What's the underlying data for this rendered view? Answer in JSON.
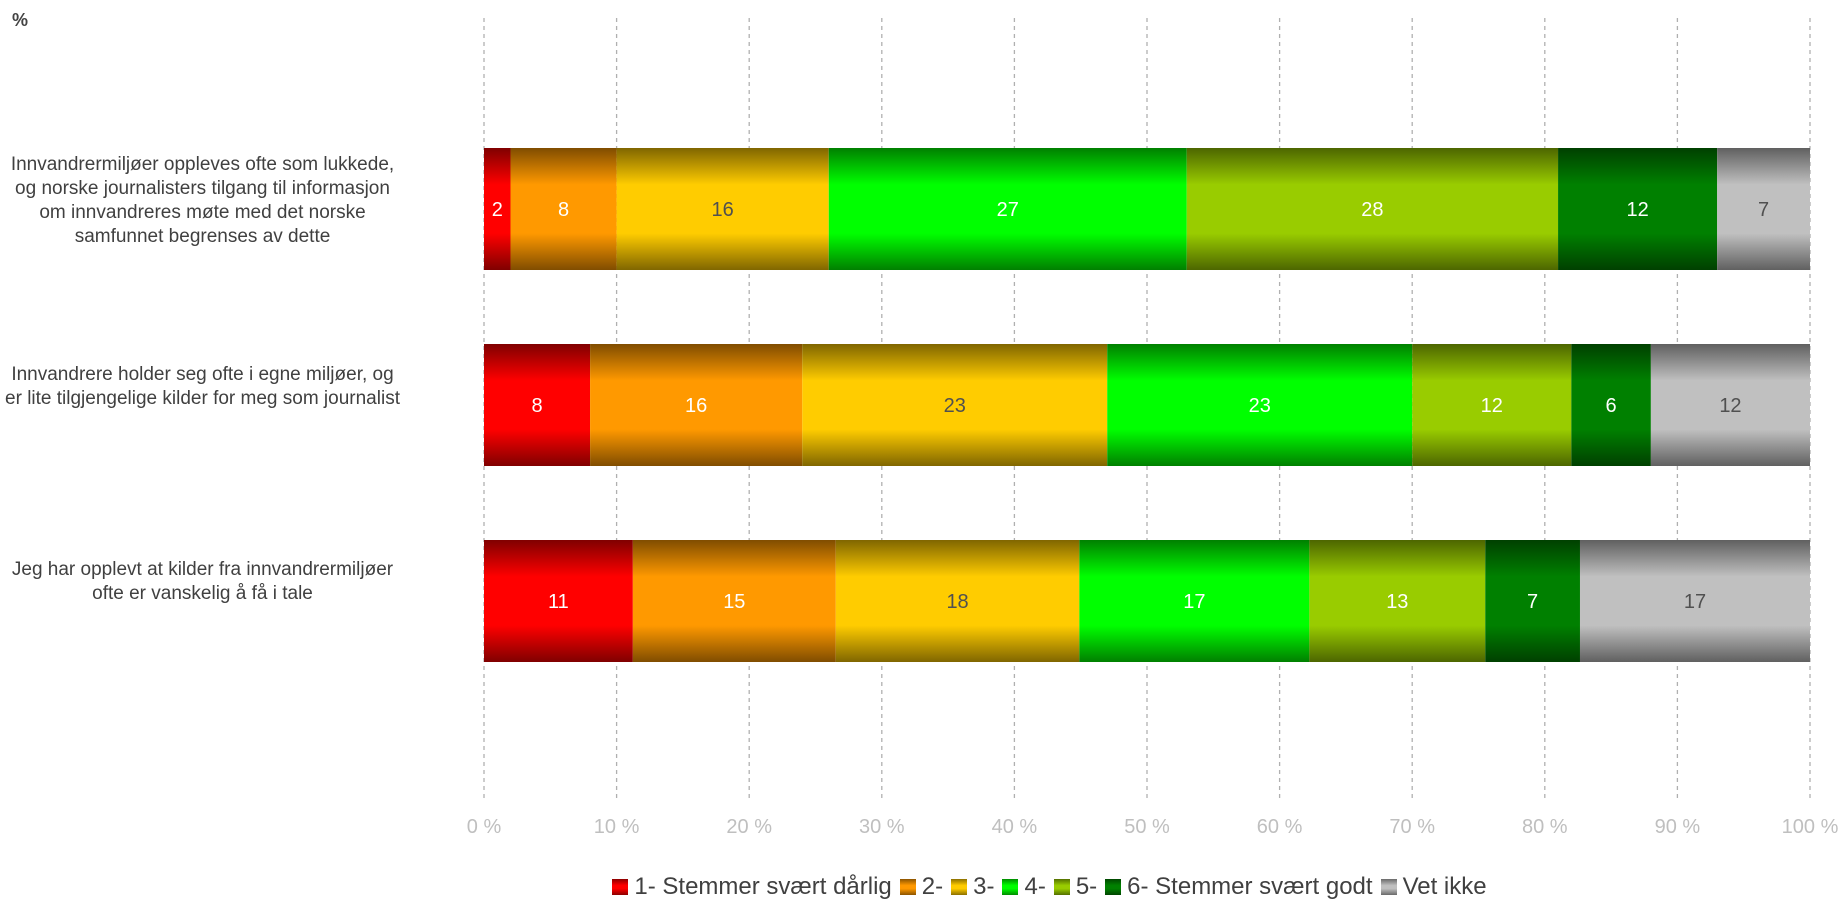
{
  "chart_data": {
    "type": "bar",
    "orientation": "horizontal",
    "stacked": "percent",
    "unit_label": "%",
    "categories": [
      "Innvandrermiljøer oppleves ofte som lukkede, og norske journalisters tilgang til informasjon om innvandreres møte med det norske samfunnet begrenses av dette",
      "Innvandrere holder seg ofte i egne miljøer, og er lite tilgjengelige kilder for meg som journalist",
      "Jeg har opplevt at kilder fra innvandrermiljøer ofte er vanskelig å få i tale"
    ],
    "series": [
      {
        "name": "1- Stemmer svært dårlig",
        "color": "#ff0000",
        "values": [
          2,
          8,
          11
        ]
      },
      {
        "name": "2-",
        "color": "#ff9900",
        "values": [
          8,
          16,
          15
        ]
      },
      {
        "name": "3-",
        "color": "#ffcc00",
        "values": [
          16,
          23,
          18
        ]
      },
      {
        "name": "4-",
        "color": "#00ff00",
        "values": [
          27,
          23,
          17
        ]
      },
      {
        "name": "5-",
        "color": "#99cc00",
        "values": [
          28,
          12,
          13
        ]
      },
      {
        "name": "6- Stemmer svært godt",
        "color": "#008000",
        "values": [
          12,
          6,
          7
        ]
      },
      {
        "name": "Vet ikke",
        "color": "#c0c0c0",
        "values": [
          7,
          12,
          17
        ]
      }
    ],
    "x_ticks": [
      "0 %",
      "10 %",
      "20 %",
      "30 %",
      "40 %",
      "50 %",
      "60 %",
      "70 %",
      "80 %",
      "90 %",
      "100 %"
    ],
    "xlim": [
      0,
      100
    ],
    "grid": true,
    "legend_position": "bottom"
  }
}
